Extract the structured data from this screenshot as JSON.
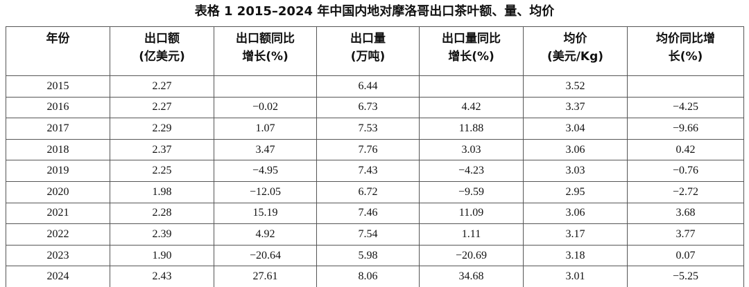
{
  "title": "表格 1 2015–2024 年中国内地对摩洛哥出口茶叶额、量、均价",
  "table": {
    "header": [
      [
        "年份"
      ],
      [
        "出口额",
        "(亿美元)"
      ],
      [
        "出口额同比",
        "增长(%)"
      ],
      [
        "出口量",
        "(万吨)"
      ],
      [
        "出口量同比",
        "增长(%)"
      ],
      [
        "均价",
        "(美元/Kg)"
      ],
      [
        "均价同比增",
        "长(%)"
      ]
    ],
    "rows": [
      [
        "2015",
        "2.27",
        null,
        "6.44",
        null,
        "3.52",
        null
      ],
      [
        "2016",
        "2.27",
        "−0.02",
        "6.73",
        "4.42",
        "3.37",
        "−4.25"
      ],
      [
        "2017",
        "2.29",
        "1.07",
        "7.53",
        "11.88",
        "3.04",
        "−9.66"
      ],
      [
        "2018",
        "2.37",
        "3.47",
        "7.76",
        "3.03",
        "3.06",
        "0.42"
      ],
      [
        "2019",
        "2.25",
        "−4.95",
        "7.43",
        "−4.23",
        "3.03",
        "−0.76"
      ],
      [
        "2020",
        "1.98",
        "−12.05",
        "6.72",
        "−9.59",
        "2.95",
        "−2.72"
      ],
      [
        "2021",
        "2.28",
        "15.19",
        "7.46",
        "11.09",
        "3.06",
        "3.68"
      ],
      [
        "2022",
        "2.39",
        "4.92",
        "7.54",
        "1.11",
        "3.17",
        "3.77"
      ],
      [
        "2023",
        "1.90",
        "−20.64",
        "5.98",
        "−20.69",
        "3.18",
        "0.07"
      ],
      [
        "2024",
        "2.43",
        "27.61",
        "8.06",
        "34.68",
        "3.01",
        "−5.25"
      ]
    ]
  }
}
